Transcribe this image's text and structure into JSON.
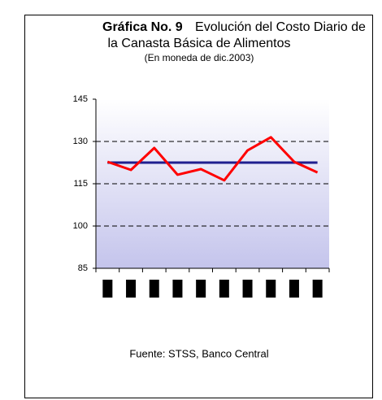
{
  "chart_data": {
    "type": "line",
    "title": [
      "Gráfica No. 9",
      "Evolución del Costo Diario de",
      "la Canasta Básica de Alimentos"
    ],
    "subtitle": "(En moneda de dic.2003)",
    "source": "Fuente: STSS, Banco Central",
    "categories": [
      null,
      null,
      null,
      null,
      null,
      null,
      null,
      null,
      null,
      null
    ],
    "series": [
      {
        "color": "#1f1f8f",
        "values": [
          122.5,
          122.5,
          122.5,
          122.5,
          122.5,
          122.5,
          122.5,
          122.5,
          122.5,
          122.5
        ]
      },
      {
        "color": "#ff0000",
        "values": [
          122.8,
          119.9,
          127.7,
          118.2,
          120.2,
          116.2,
          126.8,
          131.5,
          122.8,
          119
        ]
      }
    ],
    "ylim": [
      85,
      145
    ],
    "yticks": [
      85,
      100,
      115,
      130,
      145
    ],
    "grid": true
  }
}
